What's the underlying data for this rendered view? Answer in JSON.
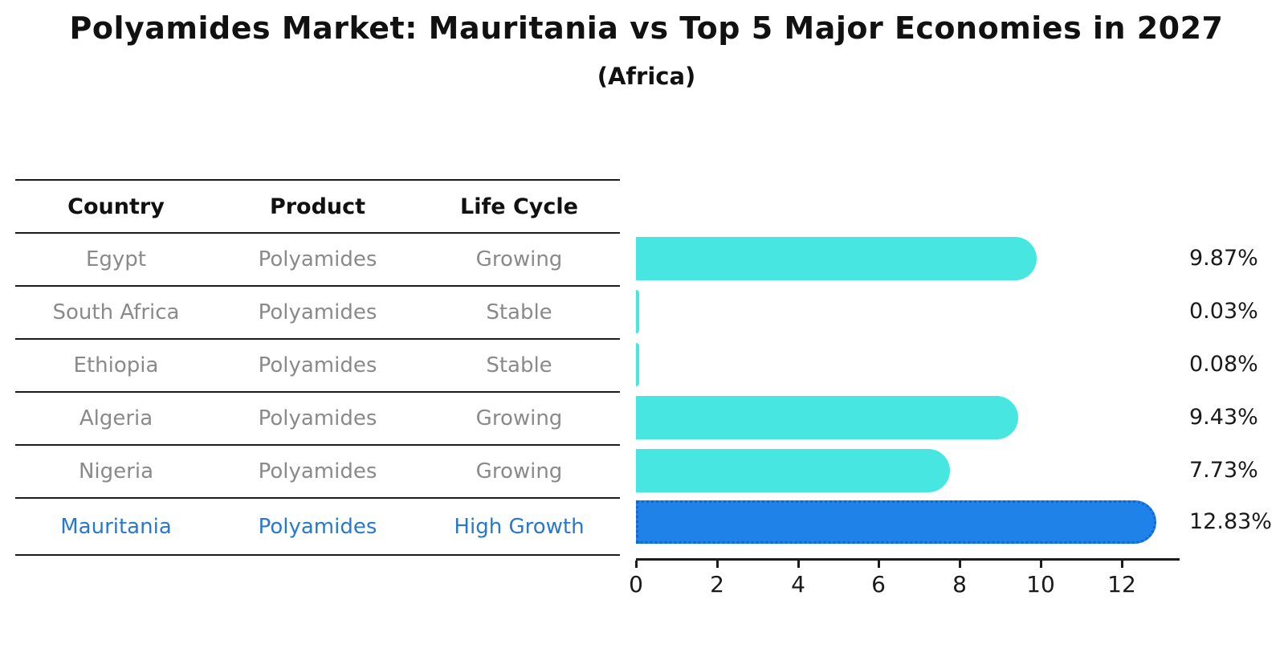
{
  "title": "Polyamides Market: Mauritania vs Top 5 Major Economies in 2027",
  "subtitle": "(Africa)",
  "table": {
    "headers": [
      "Country",
      "Product",
      "Life Cycle"
    ],
    "rows": [
      {
        "country": "Egypt",
        "product": "Polyamides",
        "life_cycle": "Growing",
        "highlight": false
      },
      {
        "country": "South Africa",
        "product": "Polyamides",
        "life_cycle": "Stable",
        "highlight": false
      },
      {
        "country": "Ethiopia",
        "product": "Polyamides",
        "life_cycle": "Stable",
        "highlight": false
      },
      {
        "country": "Algeria",
        "product": "Polyamides",
        "life_cycle": "Growing",
        "highlight": false
      },
      {
        "country": "Nigeria",
        "product": "Polyamides",
        "life_cycle": "Growing",
        "highlight": false
      },
      {
        "country": "Mauritania",
        "product": "Polyamides",
        "life_cycle": "High Growth",
        "highlight": true
      }
    ]
  },
  "chart_data": {
    "type": "bar",
    "orientation": "horizontal",
    "title": "Polyamides Market: Mauritania vs Top 5 Major Economies in 2027",
    "subtitle": "(Africa)",
    "categories": [
      "Egypt",
      "South Africa",
      "Ethiopia",
      "Algeria",
      "Nigeria",
      "Mauritania"
    ],
    "values": [
      9.87,
      0.03,
      0.08,
      9.43,
      7.73,
      12.83
    ],
    "value_labels": [
      "9.87%",
      "0.03%",
      "0.08%",
      "9.43%",
      "7.73%",
      "12.83%"
    ],
    "unit": "%",
    "xlabel": "",
    "ylabel": "",
    "xlim": [
      0,
      13.4
    ],
    "x_ticks": [
      "0",
      "2",
      "4",
      "6",
      "8",
      "10",
      "12"
    ],
    "grid": false,
    "legend": false,
    "highlight_index": 5,
    "colors": {
      "default_bar": "#47E6E1",
      "highlight_bar": "#1E82E8",
      "highlight_border": "#1069D2",
      "highlight_text": "#2879CE",
      "row_text": "#8A8A8A",
      "header_text": "#111111",
      "value_text": "#1A1A1A",
      "line": "#1C1C1C"
    }
  }
}
